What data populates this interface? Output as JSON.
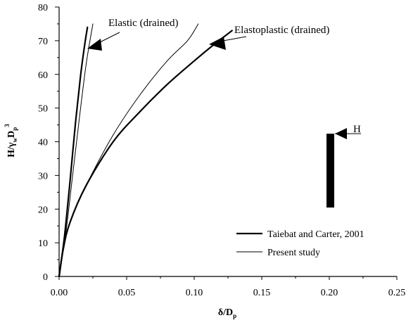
{
  "chart_data": {
    "type": "line",
    "title": "",
    "xlabel": "δ/D",
    "xlabel_sub": "p",
    "ylabel": "H/γ",
    "ylabel_sub_w": "w",
    "ylabel_mid": "D",
    "ylabel_sub_p": "p",
    "ylabel_sup": "3",
    "xlim": [
      0,
      0.25
    ],
    "ylim": [
      0,
      80
    ],
    "x_ticks": [
      "0.00",
      "0.05",
      "0.10",
      "0.15",
      "0.20",
      "0.25"
    ],
    "y_ticks": [
      "0",
      "10",
      "20",
      "30",
      "40",
      "50",
      "60",
      "70",
      "80"
    ],
    "grid": false,
    "legend_position": "bottom-right",
    "series": [
      {
        "name": "Taiebat and Carter, 2001",
        "style": "thick",
        "color": "#000000",
        "curves": [
          {
            "x": [
              0.0,
              0.004,
              0.008,
              0.012,
              0.016,
              0.019,
              0.021
            ],
            "y": [
              0,
              12,
              28,
              45,
              60,
              69,
              74
            ]
          },
          {
            "x": [
              0.0,
              0.003,
              0.008,
              0.02,
              0.04,
              0.06,
              0.08,
              0.1,
              0.115,
              0.128
            ],
            "y": [
              0,
              8,
              16,
              27,
              40,
              49,
              57,
              64,
              69,
              73
            ]
          }
        ]
      },
      {
        "name": "Present study",
        "style": "thin",
        "color": "#000000",
        "curves": [
          {
            "x": [
              0.0,
              0.005,
              0.01,
              0.015,
              0.02,
              0.025
            ],
            "y": [
              0,
              13,
              30,
              47,
              63,
              75
            ]
          },
          {
            "x": [
              0.0,
              0.003,
              0.008,
              0.02,
              0.04,
              0.06,
              0.08,
              0.095,
              0.103
            ],
            "y": [
              0,
              8,
              16,
              27,
              42,
              54,
              64,
              70,
              75
            ]
          }
        ]
      }
    ],
    "annotations": [
      {
        "text": "Elastic (drained)",
        "at_x": 0.021,
        "at_y": 67
      },
      {
        "text": "Elastoplastic (drained)",
        "at_x": 0.114,
        "at_y": 69.5
      }
    ],
    "inset": {
      "label": "H"
    }
  }
}
